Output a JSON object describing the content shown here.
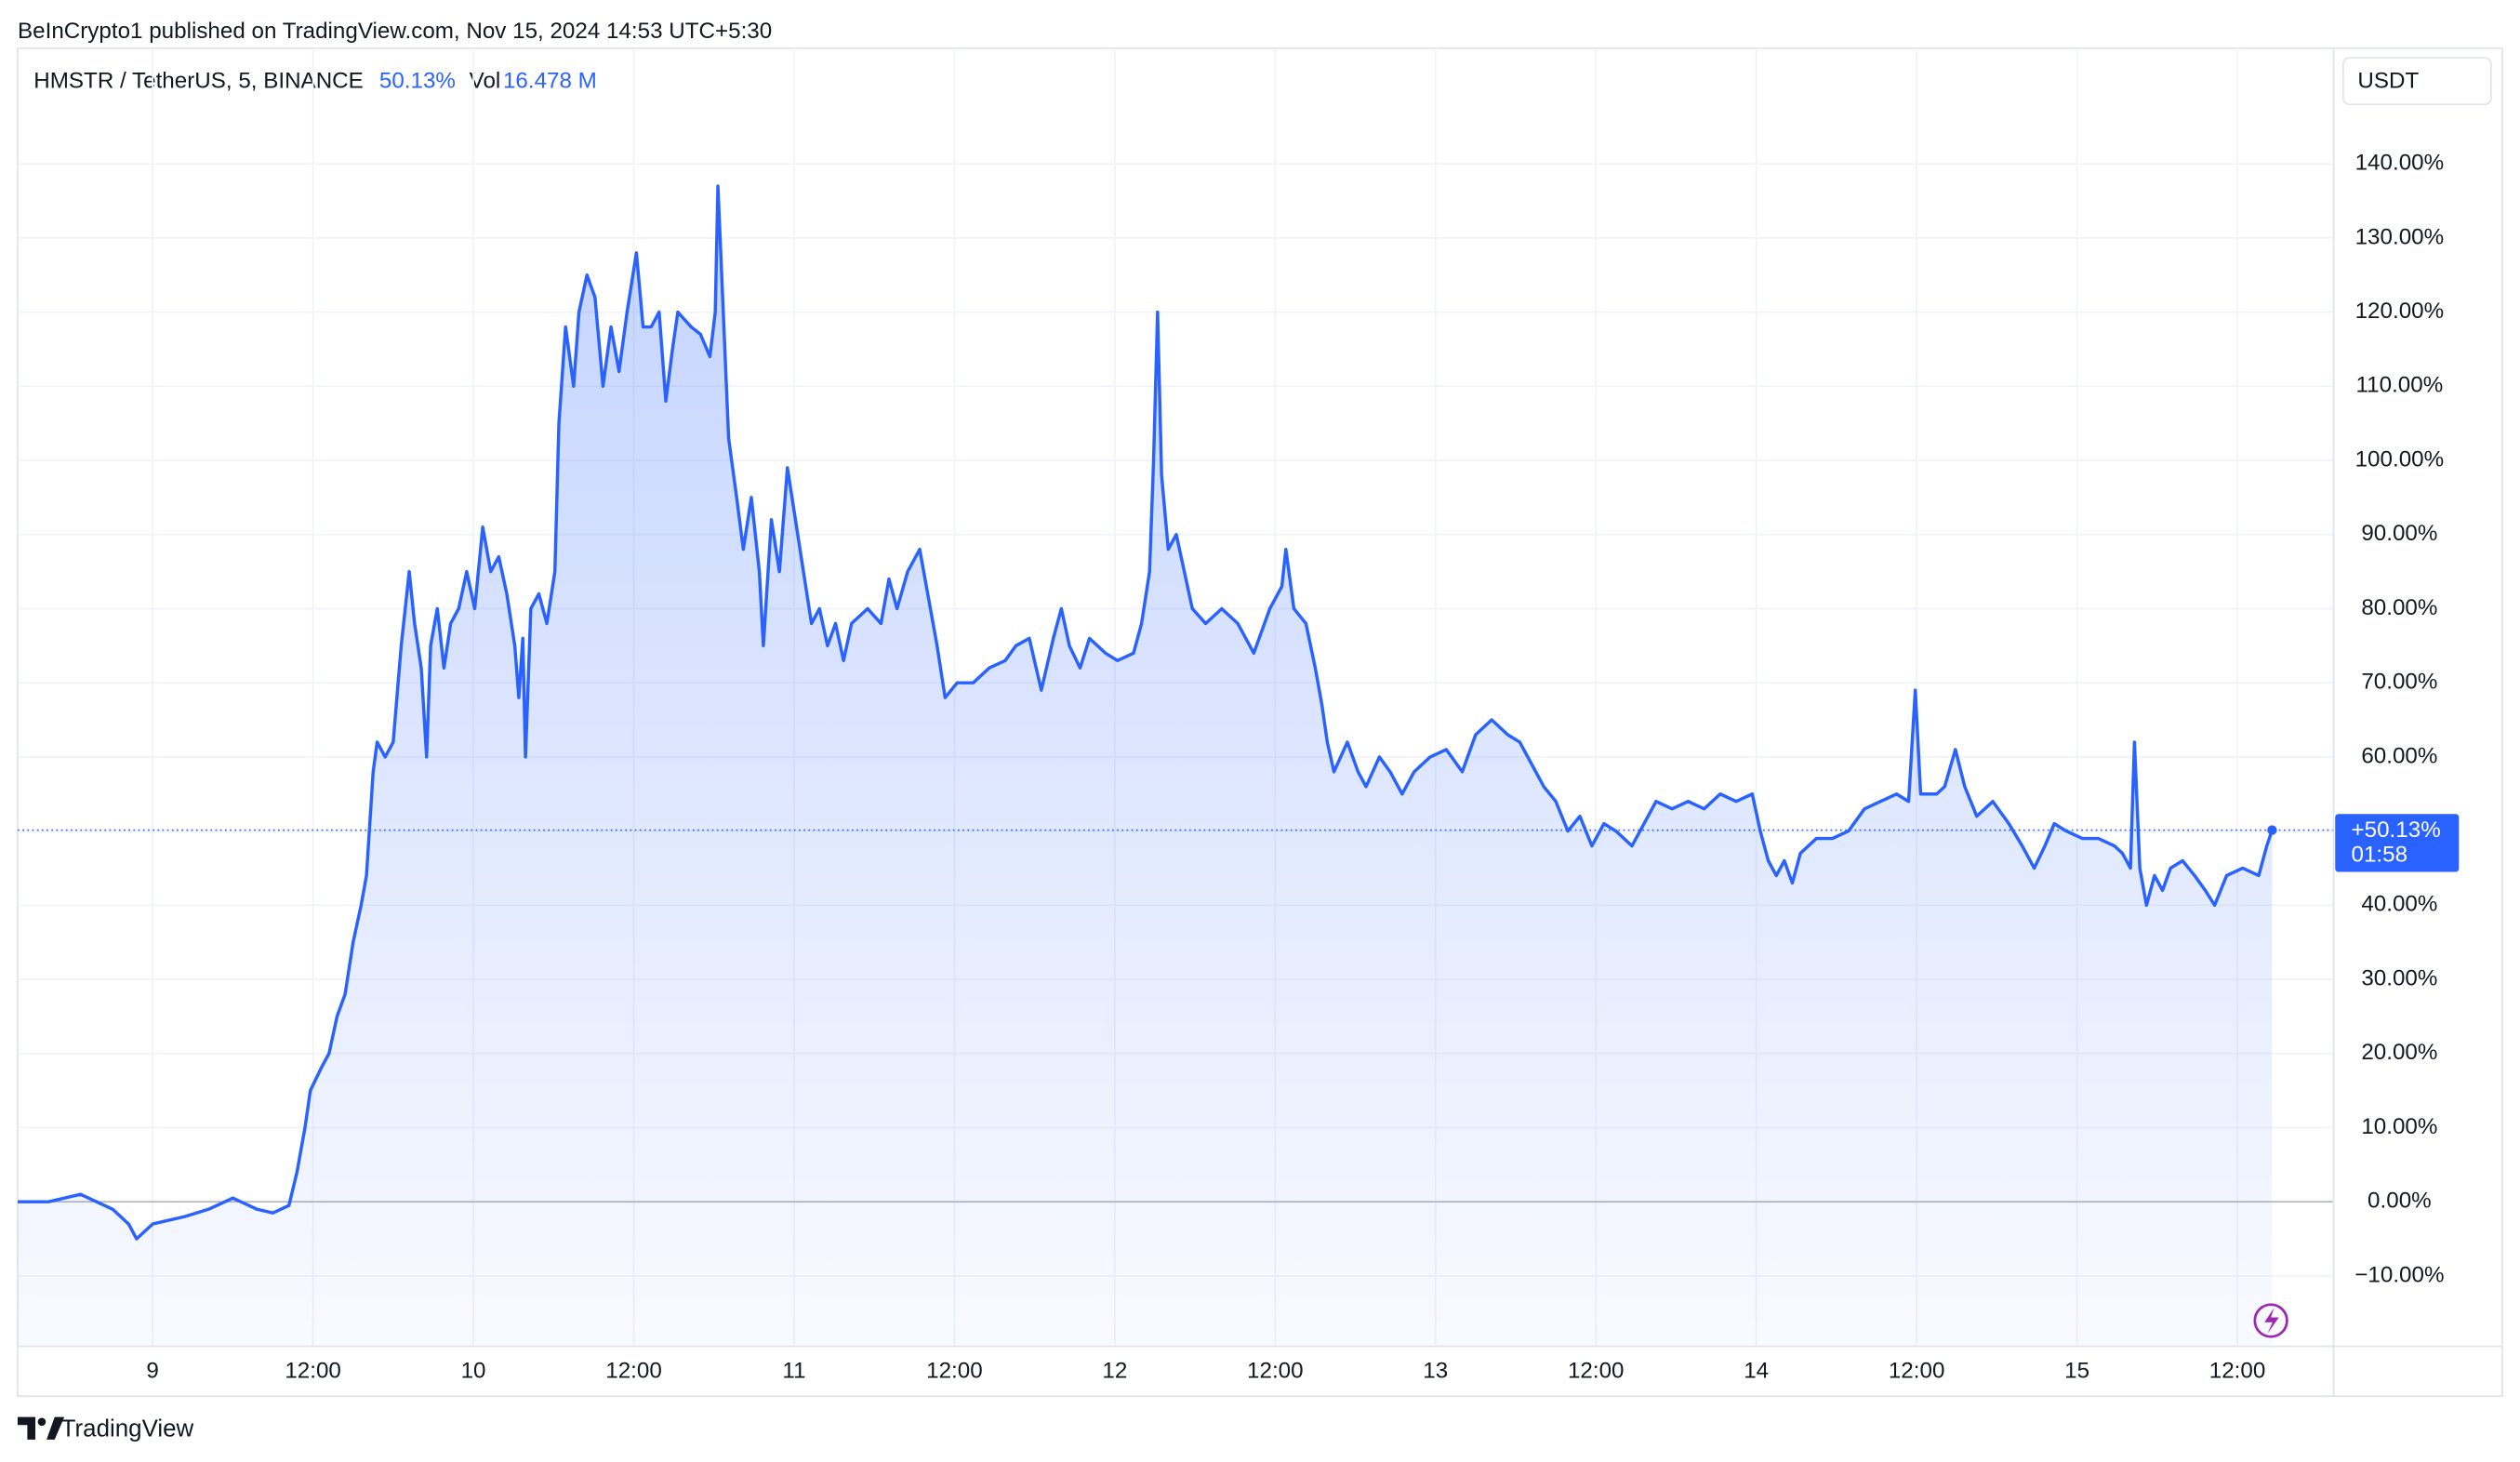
{
  "chart_data": {
    "type": "area",
    "publisher": "BeInCrypto1 published on TradingView.com, Nov 15, 2024 14:53 UTC+5:30",
    "title": "HMSTR / TetherUS, 5, BINANCE",
    "change_label": "50.13%",
    "vol_label": "Vol",
    "volume_label": "16.478 M",
    "currency": "USDT",
    "last_value_label": "+50.13%",
    "countdown": "01:58",
    "brand": "TradingView",
    "color": "#2962ff",
    "grid": true,
    "xlim": [
      -10.1,
      163.2
    ],
    "ylim": [
      -19.5,
      155.6
    ],
    "xticks": [
      {
        "value": 0,
        "label": "9"
      },
      {
        "value": 12,
        "label": "12:00"
      },
      {
        "value": 24,
        "label": "10"
      },
      {
        "value": 36,
        "label": "12:00"
      },
      {
        "value": 48,
        "label": "11"
      },
      {
        "value": 60,
        "label": "12:00"
      },
      {
        "value": 72,
        "label": "12"
      },
      {
        "value": 84,
        "label": "12:00"
      },
      {
        "value": 96,
        "label": "13"
      },
      {
        "value": 108,
        "label": "12:00"
      },
      {
        "value": 120,
        "label": "14"
      },
      {
        "value": 132,
        "label": "12:00"
      },
      {
        "value": 144,
        "label": "15"
      },
      {
        "value": 156,
        "label": "12:00"
      }
    ],
    "yticks": [
      {
        "value": -10,
        "label": "−10.00%"
      },
      {
        "value": 0,
        "label": "0.00%"
      },
      {
        "value": 10,
        "label": "10.00%"
      },
      {
        "value": 20,
        "label": "20.00%"
      },
      {
        "value": 30,
        "label": "30.00%"
      },
      {
        "value": 40,
        "label": "40.00%"
      },
      {
        "value": 50,
        "label": "50.00%"
      },
      {
        "value": 60,
        "label": "60.00%"
      },
      {
        "value": 70,
        "label": "70.00%"
      },
      {
        "value": 80,
        "label": "80.00%"
      },
      {
        "value": 90,
        "label": "90.00%"
      },
      {
        "value": 100,
        "label": "100.00%"
      },
      {
        "value": 110,
        "label": "110.00%"
      },
      {
        "value": 120,
        "label": "120.00%"
      },
      {
        "value": 130,
        "label": "130.00%"
      },
      {
        "value": 140,
        "label": "140.00%"
      }
    ],
    "x": [
      -10.1,
      -7.8,
      -5.4,
      -4.2,
      -3.0,
      -1.8,
      -1.2,
      0,
      1.2,
      2.4,
      4.2,
      6.0,
      7.8,
      9.0,
      10.2,
      10.8,
      11.4,
      11.8,
      12.6,
      13.2,
      13.8,
      14.4,
      15.0,
      15.6,
      16.0,
      16.5,
      16.8,
      17.4,
      18.0,
      18.6,
      19.2,
      19.6,
      20.1,
      20.5,
      20.8,
      21.3,
      21.8,
      22.3,
      22.9,
      23.5,
      24.1,
      24.7,
      25.3,
      25.9,
      26.5,
      27.1,
      27.4,
      27.7,
      27.9,
      28.3,
      28.9,
      29.5,
      30.1,
      30.4,
      30.9,
      31.5,
      31.9,
      32.5,
      33.1,
      33.7,
      34.3,
      34.9,
      35.5,
      36.2,
      36.7,
      37.3,
      37.9,
      38.4,
      38.9,
      39.3,
      40.3,
      41.0,
      41.7,
      42.1,
      42.3,
      42.7,
      43.1,
      43.7,
      44.2,
      44.8,
      45.4,
      45.7,
      46.3,
      46.9,
      47.5,
      48.1,
      48.7,
      49.3,
      49.9,
      50.5,
      51.1,
      51.7,
      52.3,
      53.5,
      54.5,
      55.1,
      55.7,
      56.5,
      57.4,
      58.0,
      58.7,
      59.3,
      60.2,
      61.4,
      62.6,
      63.8,
      64.6,
      65.6,
      66.5,
      67.4,
      68.0,
      68.6,
      69.4,
      70.1,
      71.3,
      72.2,
      73.4,
      74.0,
      74.6,
      74.9,
      75.2,
      75.5,
      76.0,
      76.6,
      77.2,
      77.8,
      78.8,
      80.0,
      81.2,
      81.8,
      82.4,
      83.6,
      84.5,
      84.8,
      85.4,
      86.3,
      87.0,
      87.5,
      87.9,
      88.4,
      89.4,
      90.2,
      90.8,
      91.8,
      92.6,
      93.5,
      94.4,
      95.6,
      96.8,
      98.0,
      99.0,
      100.2,
      101.4,
      102.3,
      102.9,
      104.1,
      105.0,
      105.9,
      106.8,
      107.7,
      108.6,
      109.5,
      110.7,
      111.3,
      112.5,
      113.7,
      114.9,
      116.1,
      117.3,
      118.5,
      119.7,
      120.3,
      120.9,
      121.5,
      122.1,
      122.7,
      123.3,
      124.5,
      125.7,
      126.9,
      128.1,
      129.3,
      130.5,
      131.4,
      131.9,
      132.3,
      133.5,
      134.1,
      134.9,
      135.6,
      136.5,
      137.7,
      138.9,
      139.9,
      140.8,
      141.6,
      142.3,
      143.2,
      144.4,
      145.6,
      146.8,
      147.4,
      148.0,
      148.3,
      148.7,
      149.2,
      149.8,
      150.4,
      151.0,
      151.9,
      152.8,
      153.6,
      154.3,
      155.2,
      156.4,
      157.6,
      158.2,
      158.6
    ],
    "values": [
      0,
      0,
      1,
      0,
      -1,
      -3,
      -5,
      -3,
      -2.5,
      -2,
      -1,
      0.5,
      -1,
      -1.5,
      -0.5,
      4,
      10,
      15,
      18,
      20,
      25,
      28,
      35,
      40,
      44,
      58,
      62,
      60,
      62,
      75,
      85,
      78,
      72,
      60,
      75,
      80,
      72,
      78,
      80,
      85,
      80,
      91,
      85,
      87,
      82,
      75,
      68,
      76,
      60,
      80,
      82,
      78,
      85,
      105,
      118,
      110,
      120,
      125,
      122,
      110,
      118,
      112,
      120,
      128,
      118,
      118,
      120,
      108,
      115,
      120,
      118,
      117,
      114,
      120,
      137,
      120,
      103,
      95,
      88,
      95,
      85,
      75,
      92,
      85,
      99,
      92,
      85,
      78,
      80,
      75,
      78,
      73,
      78,
      80,
      78,
      84,
      80,
      85,
      88,
      82,
      75,
      68,
      70,
      70,
      72,
      73,
      75,
      76,
      69,
      76,
      80,
      75,
      72,
      76,
      74,
      73,
      74,
      78,
      85,
      100,
      120,
      98,
      88,
      90,
      85,
      80,
      78,
      80,
      78,
      76,
      74,
      80,
      83,
      88,
      80,
      78,
      72,
      67,
      62,
      58,
      62,
      58,
      56,
      60,
      58,
      55,
      58,
      60,
      61,
      58,
      63,
      65,
      63,
      62,
      60,
      56,
      54,
      50,
      52,
      48,
      51,
      50,
      48,
      50,
      54,
      53,
      54,
      53,
      55,
      54,
      55,
      50,
      46,
      44,
      46,
      43,
      47,
      49,
      49,
      50,
      53,
      54,
      55,
      54,
      69,
      55,
      55,
      56,
      61,
      56,
      52,
      54,
      51,
      48,
      45,
      48,
      51,
      50,
      49,
      49,
      48,
      47,
      45,
      62,
      45,
      40,
      44,
      42,
      45,
      46,
      44,
      42,
      40,
      44,
      45,
      44,
      48,
      50.13
    ]
  }
}
